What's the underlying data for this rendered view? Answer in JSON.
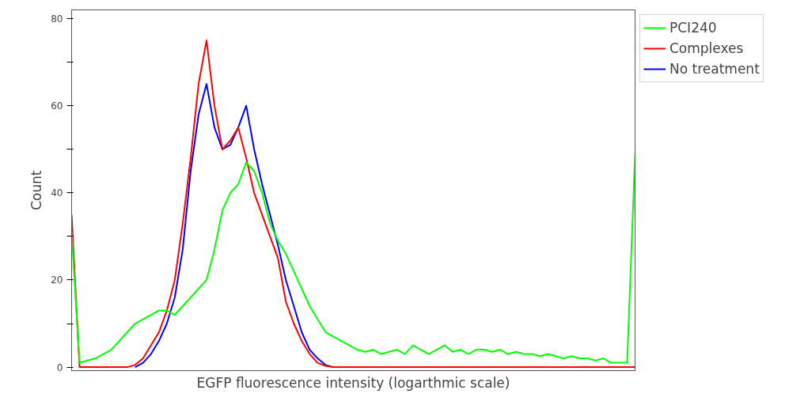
{
  "chart_data": {
    "type": "line",
    "xlabel": "EGFP fluorescence intensity (logarthmic scale)",
    "ylabel": "Count",
    "categories": [
      null,
      null,
      null,
      null,
      null,
      null,
      null,
      null,
      null,
      null,
      null,
      null,
      null,
      null,
      null,
      null,
      null,
      null,
      null,
      null,
      null,
      null,
      null,
      null,
      null,
      null,
      null,
      null,
      null,
      null,
      null,
      null,
      null,
      null,
      null,
      null,
      null,
      null,
      null,
      null,
      null,
      null,
      null,
      null,
      null,
      null,
      null,
      null,
      null,
      null,
      null,
      null,
      null,
      null,
      null,
      null,
      null,
      null,
      null,
      null,
      null,
      null,
      null,
      null,
      null,
      null,
      null,
      null,
      null,
      null,
      null,
      null
    ],
    "ylim": [
      -0.8,
      82
    ],
    "yticks": [
      0,
      {
        "value": 10,
        "label": null
      },
      20,
      {
        "value": 30,
        "label": null
      },
      40,
      {
        "value": 50,
        "label": null
      },
      60,
      {
        "value": 70,
        "label": null
      },
      80
    ],
    "grid": false,
    "legend": "top right",
    "line_style": "solid",
    "marker": "none",
    "series": [
      {
        "name": "PCI240",
        "color": "#00ff00",
        "values": [
          31,
          1,
          1.5,
          2,
          3,
          4,
          6,
          8,
          10,
          11,
          12,
          13,
          13,
          12,
          14,
          16,
          18,
          20,
          27,
          36,
          40,
          42,
          47,
          45,
          40,
          33,
          29,
          26,
          22,
          18,
          14,
          11,
          8,
          7,
          6,
          5,
          4,
          3.5,
          4,
          3,
          3.5,
          4,
          3,
          5,
          4,
          3,
          4,
          5,
          3.5,
          4,
          3,
          4,
          4,
          3.5,
          4,
          3,
          3.5,
          3,
          3,
          2.5,
          3,
          2.5,
          2,
          2.5,
          2,
          2,
          1.5,
          2,
          1,
          1,
          1,
          49
        ]
      },
      {
        "name": "Complexes",
        "color": "#ff0000",
        "values": [
          35,
          0,
          0,
          0,
          0,
          0,
          0,
          0,
          0.5,
          2,
          5,
          8,
          13,
          20,
          33,
          48,
          65,
          75,
          60,
          50,
          52,
          55,
          48,
          40,
          35,
          30,
          25,
          15,
          10,
          6,
          3,
          1,
          0.3,
          0,
          0,
          0,
          0,
          0,
          0,
          0,
          0,
          0,
          0,
          0,
          0,
          0,
          0,
          0,
          0,
          0,
          0,
          0,
          0,
          0,
          0,
          0,
          0,
          0,
          0,
          0,
          0,
          0,
          0,
          0,
          0,
          0,
          0,
          0,
          0,
          0,
          0,
          0
        ]
      },
      {
        "name": "No treatment",
        "color": "#0000ff",
        "values": [
          null,
          null,
          null,
          null,
          null,
          null,
          null,
          null,
          0,
          1,
          3,
          6,
          10,
          16,
          27,
          45,
          58,
          65,
          55,
          50,
          51,
          55,
          60,
          50,
          42,
          35,
          28,
          20,
          14,
          8,
          4,
          2,
          0.5,
          0,
          null,
          null,
          null,
          null,
          null,
          null,
          null,
          null,
          null,
          null,
          null,
          null,
          null,
          null,
          null,
          null,
          null,
          null,
          null,
          null,
          null,
          null,
          null,
          null,
          null,
          null,
          null,
          null,
          null,
          null,
          null,
          null,
          null,
          null,
          null,
          null,
          null,
          null
        ]
      }
    ]
  }
}
